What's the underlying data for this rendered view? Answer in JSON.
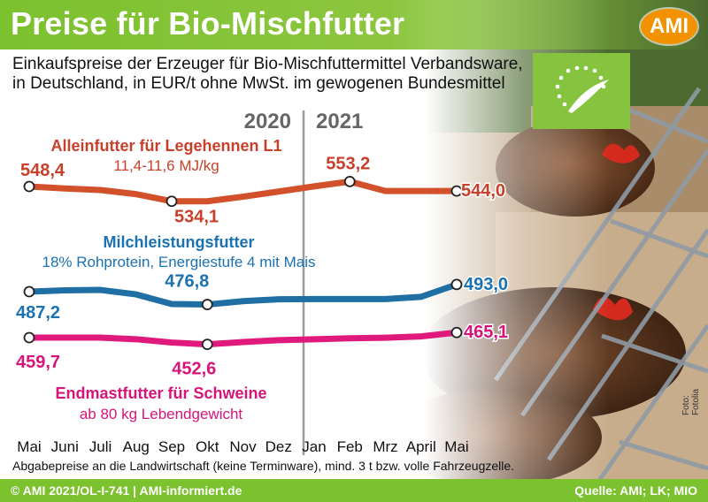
{
  "header": {
    "title": "Preise für Bio-Mischfutter",
    "logo_text": "AMI"
  },
  "subtitle": {
    "line1": "Einkaufspreise der Erzeuger für Bio-Mischfuttermittel Verbandsware,",
    "line2": "in Deutschland, in EUR/t ohne MwSt. im gewogenen Bundesmittel"
  },
  "colors": {
    "brand_green": "#7cc12e",
    "ami_orange": "#f39200",
    "series_red": "#d2502a",
    "series_red_text": "#c8402a",
    "series_blue": "#1f6fa5",
    "series_blue_text": "#1a72b0",
    "series_magenta": "#e0197d",
    "series_magenta_text": "#d6147a"
  },
  "chart_data": {
    "type": "line",
    "categories": [
      "Mai",
      "Juni",
      "Juli",
      "Aug",
      "Sep",
      "Okt",
      "Nov",
      "Dez",
      "Jan",
      "Feb",
      "Mrz",
      "April",
      "Mai"
    ],
    "year_labels": [
      "2020",
      "2021"
    ],
    "series": [
      {
        "name": "Alleinfutter für Legehennen L1",
        "note": "11,4-11,6 MJ/kg",
        "values": [
          548.4,
          546.5,
          545.0,
          541.0,
          534.1,
          534.1,
          538.5,
          543.5,
          548.5,
          553.2,
          544.0,
          544.0,
          544.0
        ],
        "labels": [
          {
            "index": 0,
            "text": "548,4"
          },
          {
            "index": 4,
            "text": "534,1"
          },
          {
            "index": 9,
            "text": "553,2"
          },
          {
            "index": 12,
            "text": "544,0"
          }
        ]
      },
      {
        "name": "Milchleistungsfutter",
        "note": "18% Rohprotein, Energiestufe 4 mit Mais",
        "values": [
          487.2,
          488.3,
          488.6,
          485.0,
          477.2,
          476.8,
          479.5,
          481.0,
          481.2,
          481.2,
          481.2,
          483.0,
          493.0
        ],
        "labels": [
          {
            "index": 0,
            "text": "487,2"
          },
          {
            "index": 5,
            "text": "476,8"
          },
          {
            "index": 12,
            "text": "493,0"
          }
        ]
      },
      {
        "name": "Endmastfutter für Schweine",
        "note": "ab 80 kg Lebendgewicht",
        "values": [
          459.7,
          459.7,
          459.7,
          458.0,
          454.5,
          452.6,
          455.0,
          457.0,
          458.0,
          459.0,
          459.6,
          461.0,
          465.1
        ],
        "labels": [
          {
            "index": 0,
            "text": "459,7"
          },
          {
            "index": 5,
            "text": "452,6"
          },
          {
            "index": 12,
            "text": "465,1"
          }
        ]
      }
    ]
  },
  "footnote": "Abgabepreise an die Landwirtschaft (keine Terminware), mind. 3 t bzw. volle Fahrzeugzelle.",
  "footer": {
    "left": "© AMI 2021/OL-I-741 | AMI-informiert.de",
    "right": "Quelle: AMI; LK; MIO"
  },
  "photo_credit": "Foto: Fotolia"
}
